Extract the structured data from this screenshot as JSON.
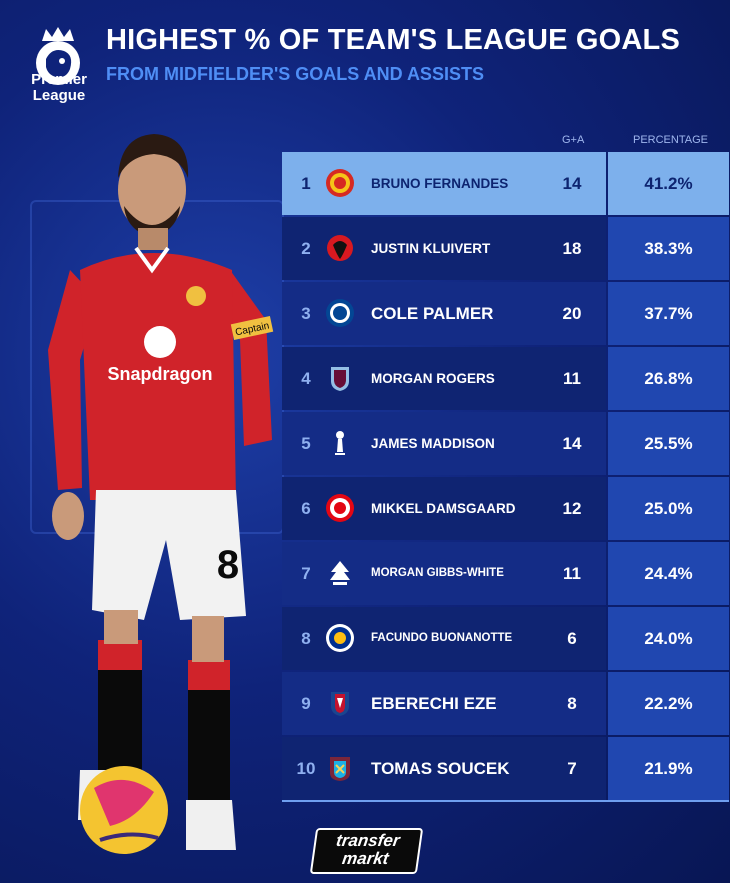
{
  "brand": {
    "logo_line1": "Premier",
    "logo_line2": "League"
  },
  "header": {
    "title": "HIGHEST % OF TEAM'S LEAGUE GOALS",
    "subtitle": "FROM MIDFIELDER'S GOALS AND ASSISTS"
  },
  "columns": {
    "ga": "G+A",
    "pct": "PERCENTAGE"
  },
  "chart_data": {
    "type": "table",
    "title": "HIGHEST % OF TEAM'S LEAGUE GOALS",
    "subtitle": "FROM MIDFIELDER'S GOALS AND ASSISTS",
    "columns": [
      "G+A",
      "PERCENTAGE"
    ],
    "rows": [
      {
        "rank": "1",
        "player": "BRUNO FERNANDES",
        "club_icon": "man-utd-crest",
        "ga": "14",
        "pct": "41.2%"
      },
      {
        "rank": "2",
        "player": "JUSTIN KLUIVERT",
        "club_icon": "bournemouth-crest",
        "ga": "18",
        "pct": "38.3%"
      },
      {
        "rank": "3",
        "player": "COLE PALMER",
        "club_icon": "chelsea-crest",
        "ga": "20",
        "pct": "37.7%"
      },
      {
        "rank": "4",
        "player": "MORGAN ROGERS",
        "club_icon": "aston-villa-crest",
        "ga": "11",
        "pct": "26.8%"
      },
      {
        "rank": "5",
        "player": "JAMES MADDISON",
        "club_icon": "tottenham-crest",
        "ga": "14",
        "pct": "25.5%"
      },
      {
        "rank": "6",
        "player": "MIKKEL DAMSGAARD",
        "club_icon": "brentford-crest",
        "ga": "12",
        "pct": "25.0%"
      },
      {
        "rank": "7",
        "player": "MORGAN GIBBS-WHITE",
        "club_icon": "nottingham-forest-crest",
        "ga": "11",
        "pct": "24.4%"
      },
      {
        "rank": "8",
        "player": "FACUNDO BUONANOTTE",
        "club_icon": "leicester-crest",
        "ga": "6",
        "pct": "24.0%"
      },
      {
        "rank": "9",
        "player": "EBERECHI EZE",
        "club_icon": "crystal-palace-crest",
        "ga": "8",
        "pct": "22.2%"
      },
      {
        "rank": "10",
        "player": "TOMAS SOUCEK",
        "club_icon": "west-ham-crest",
        "ga": "7",
        "pct": "21.9%"
      }
    ]
  },
  "player_photo": {
    "shirt_sponsor": "Snapdragon",
    "armband": "Captain",
    "shorts_number": "8"
  },
  "footer": {
    "logo_line1": "transfer",
    "logo_line2": "markt"
  },
  "colors": {
    "background": "#0f237a",
    "row_highlight": "#7db0ec",
    "subtitle": "#4f8ef5",
    "shirt_red": "#d0232a"
  }
}
